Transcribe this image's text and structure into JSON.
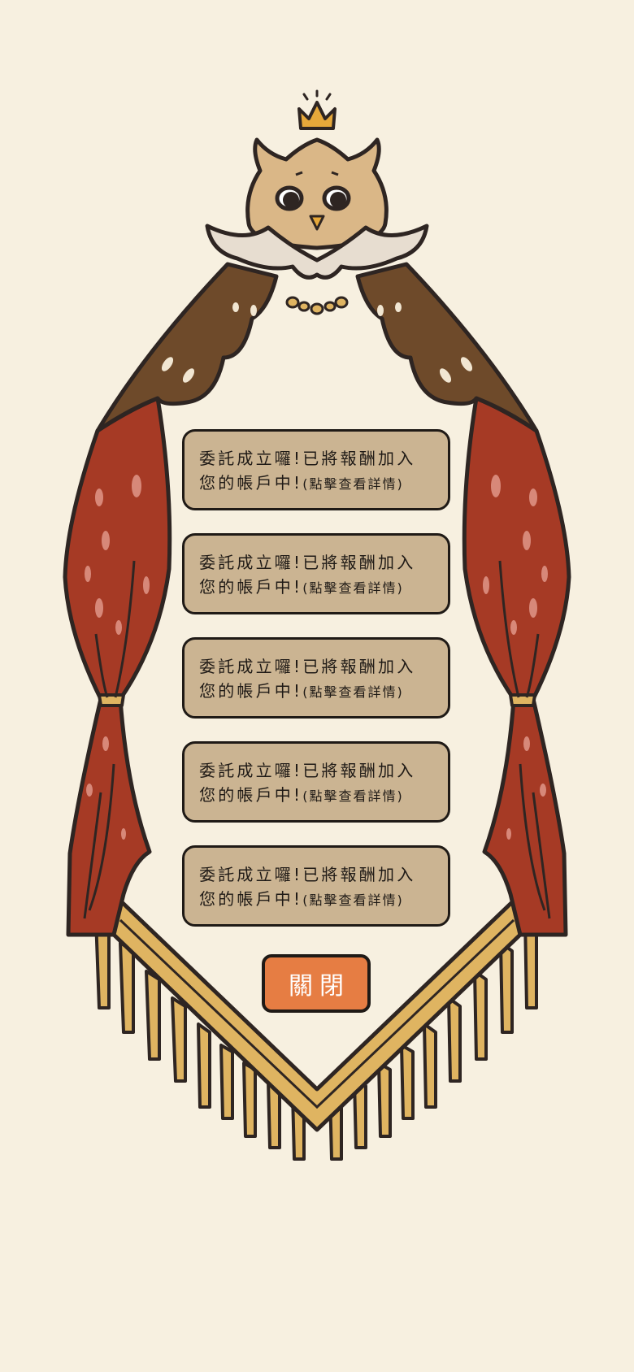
{
  "notices": [
    {
      "line1": "委託成立囉!已將報酬加入",
      "line2_main": "您的帳戶中!",
      "line2_small": "(點擊查看詳情)"
    },
    {
      "line1": "委託成立囉!已將報酬加入",
      "line2_main": "您的帳戶中!",
      "line2_small": "(點擊查看詳情)"
    },
    {
      "line1": "委託成立囉!已將報酬加入",
      "line2_main": "您的帳戶中!",
      "line2_small": "(點擊查看詳情)"
    },
    {
      "line1": "委託成立囉!已將報酬加入",
      "line2_main": "您的帳戶中!",
      "line2_small": "(點擊查看詳情)"
    },
    {
      "line1": "委託成立囉!已將報酬加入",
      "line2_main": "您的帳戶中!",
      "line2_small": "(點擊查看詳情)"
    }
  ],
  "close_label": "關閉",
  "icons": {
    "mascot": "owl-king-icon",
    "crown": "crown-icon",
    "curtain": "curtain-icon",
    "banner": "fringe-banner-icon"
  },
  "colors": {
    "background": "#f7f0e0",
    "notice_fill": "#cbb492",
    "close_button": "#e67d43",
    "curtain_red": "#a63a25",
    "wing_brown": "#6e4a2a",
    "banner_gold": "#dfb461",
    "outline": "#2e2522"
  }
}
